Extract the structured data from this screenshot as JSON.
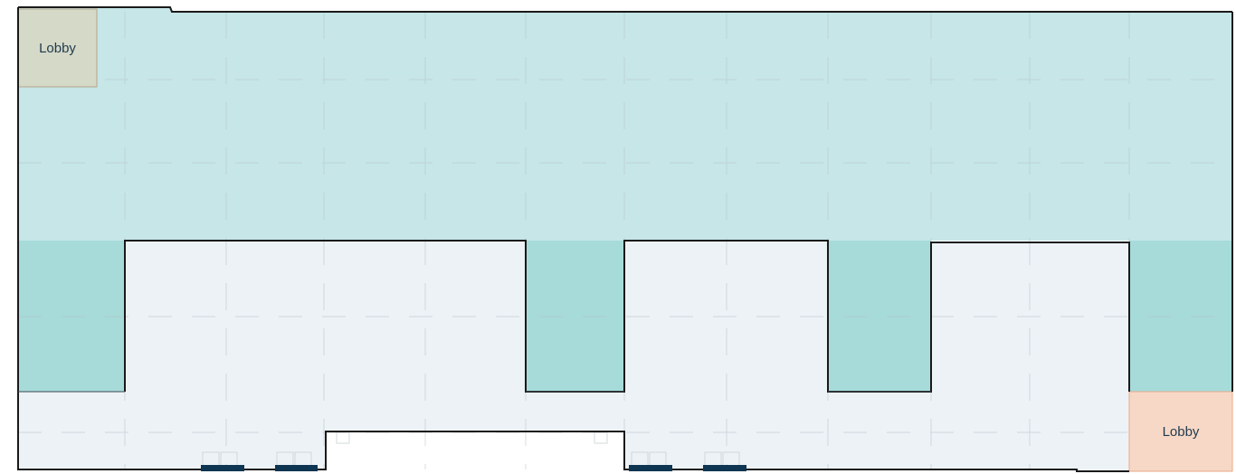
{
  "floor_plan": {
    "rooms": [
      {
        "id": "lobby-top-left",
        "label": "Lobby",
        "fill": "#d5d9c8",
        "stroke": "#b5a48a"
      },
      {
        "id": "lobby-bottom-right",
        "label": "Lobby",
        "fill": "#f7d8c6",
        "stroke": "#e8a98a"
      }
    ],
    "colors": {
      "upper_zone": "#c6e6e8",
      "column_bays": "#a6dbda",
      "lower_zone": "#edf2f7",
      "wall": "#1a1a1a",
      "gridline": "#aab5bb",
      "door_marks": "#0e3551"
    }
  }
}
